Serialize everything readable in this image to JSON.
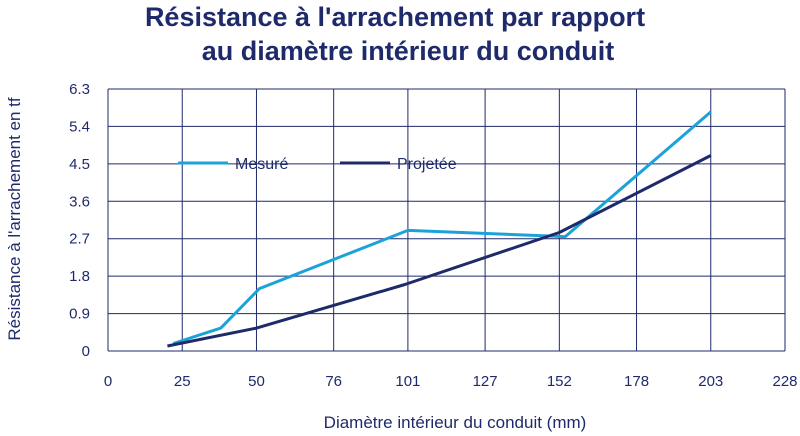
{
  "chart_data": {
    "type": "line",
    "title_lines": [
      "Résistance à l'arrachement par rapport",
      "au diamètre intérieur du conduit"
    ],
    "xlabel": "Diamètre intérieur du conduit (mm)",
    "ylabel": "Résistance à l'arrachement en tf",
    "x_ticks": [
      "0",
      "25",
      "50",
      "76",
      "101",
      "127",
      "152",
      "178",
      "203",
      "228"
    ],
    "y_ticks": [
      "0",
      "0.9",
      "1.8",
      "2.7",
      "3.6",
      "4.5",
      "5.4",
      "6.3"
    ],
    "x_tick_values": [
      0,
      25,
      50,
      76,
      101,
      127,
      152,
      178,
      203,
      228
    ],
    "y_tick_values": [
      0,
      0.9,
      1.8,
      2.7,
      3.6,
      4.5,
      5.4,
      6.3
    ],
    "xlim": [
      0,
      228
    ],
    "ylim": [
      0,
      6.3
    ],
    "grid": true,
    "legend_position": "top-left",
    "series": [
      {
        "name": "Mesuré",
        "color": "#1ba3d9",
        "x": [
          22,
          38,
          51,
          101,
          154,
          203
        ],
        "y": [
          0.18,
          0.55,
          1.5,
          2.9,
          2.75,
          5.75
        ]
      },
      {
        "name": "Projetée",
        "color": "#1f2a6b",
        "x": [
          20,
          50,
          100,
          152,
          203
        ],
        "y": [
          0.12,
          0.55,
          1.6,
          2.85,
          4.7
        ]
      }
    ]
  }
}
